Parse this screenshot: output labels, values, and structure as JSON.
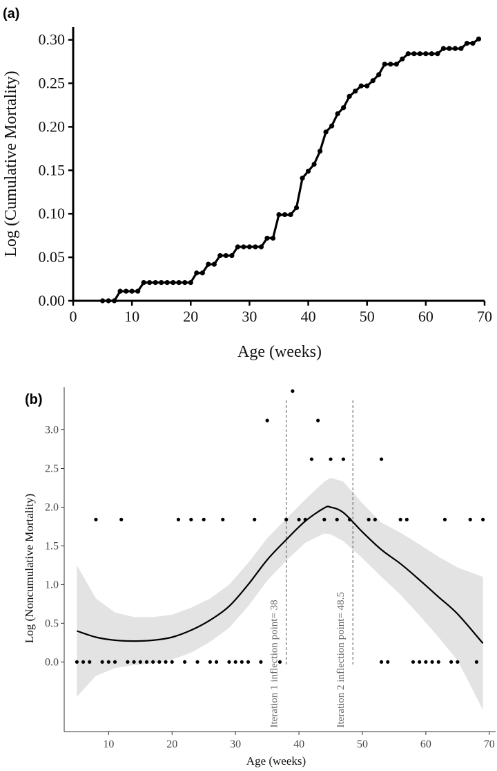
{
  "chart_data": [
    {
      "panel": "(a)",
      "type": "line",
      "xlabel": "Age (weeks)",
      "ylabel": "Log (Cumulative Mortality)",
      "xlim": [
        0,
        70
      ],
      "ylim": [
        0,
        0.31
      ],
      "xticks": [
        "0",
        "10",
        "20",
        "30",
        "40",
        "50",
        "60",
        "70"
      ],
      "yticks": [
        "0.00",
        "0.05",
        "0.10",
        "0.15",
        "0.20",
        "0.25",
        "0.30"
      ],
      "markers": true,
      "series": [
        {
          "x": [
            5,
            6,
            7,
            8,
            9,
            10,
            11,
            12,
            13,
            14,
            15,
            16,
            17,
            18,
            19,
            20,
            21,
            22,
            23,
            24,
            25,
            26,
            27,
            28,
            29,
            30,
            31,
            32,
            33,
            34,
            35,
            36,
            37,
            38,
            39,
            40,
            41,
            42,
            43,
            44,
            45,
            46,
            47,
            48,
            49,
            50,
            51,
            52,
            53,
            54,
            55,
            56,
            57,
            58,
            59,
            60,
            61,
            62,
            63,
            64,
            65,
            66,
            67,
            68,
            69
          ],
          "y": [
            0,
            0,
            0,
            0.011,
            0.011,
            0.011,
            0.011,
            0.021,
            0.021,
            0.021,
            0.021,
            0.021,
            0.021,
            0.021,
            0.021,
            0.021,
            0.032,
            0.032,
            0.042,
            0.042,
            0.052,
            0.052,
            0.052,
            0.062,
            0.062,
            0.062,
            0.062,
            0.062,
            0.072,
            0.072,
            0.099,
            0.099,
            0.099,
            0.107,
            0.141,
            0.149,
            0.157,
            0.172,
            0.194,
            0.201,
            0.215,
            0.222,
            0.235,
            0.241,
            0.247,
            0.247,
            0.253,
            0.26,
            0.272,
            0.272,
            0.272,
            0.278,
            0.284,
            0.284,
            0.284,
            0.284,
            0.284,
            0.284,
            0.29,
            0.29,
            0.29,
            0.29,
            0.296,
            0.296,
            0.301
          ]
        }
      ]
    },
    {
      "panel": "(b)",
      "type": "scatter",
      "xlabel": "Age (weeks)",
      "ylabel": "Log (Noncumulative Mortality)",
      "xlim": [
        3,
        71
      ],
      "ylim": [
        -0.9,
        3.55
      ],
      "xticks": [
        "10",
        "20",
        "30",
        "40",
        "50",
        "60",
        "70"
      ],
      "yticks": [
        "0.0",
        "0.5",
        "1.0",
        "1.5",
        "2.0",
        "2.5",
        "3.0"
      ],
      "points": {
        "x": [
          5,
          6,
          7,
          9,
          10,
          11,
          13,
          14,
          15,
          16,
          17,
          18,
          19,
          20,
          22,
          24,
          26,
          27,
          29,
          30,
          31,
          32,
          34,
          37,
          53,
          54,
          58,
          59,
          60,
          61,
          62,
          64,
          65,
          68,
          8,
          12,
          21,
          23,
          25,
          28,
          33,
          38,
          40,
          41,
          44,
          46,
          48,
          51,
          52,
          56,
          57,
          63,
          67,
          69,
          42,
          45,
          47,
          53,
          35,
          43,
          39
        ],
        "y": [
          0,
          0,
          0,
          0,
          0,
          0,
          0,
          0,
          0,
          0,
          0,
          0,
          0,
          0,
          0,
          0,
          0,
          0,
          0,
          0,
          0,
          0,
          0,
          0,
          0,
          0,
          0,
          0,
          0,
          0,
          0,
          0,
          0,
          0,
          1.84,
          1.84,
          1.84,
          1.84,
          1.84,
          1.84,
          1.84,
          1.84,
          1.84,
          1.84,
          1.84,
          1.84,
          1.84,
          1.84,
          1.84,
          1.84,
          1.84,
          1.84,
          1.84,
          1.84,
          2.62,
          2.62,
          2.62,
          2.62,
          3.12,
          3.12,
          3.5
        ]
      },
      "smooth": {
        "x": [
          5,
          8,
          11,
          14,
          17,
          20,
          23,
          26,
          29,
          32,
          35,
          38,
          41,
          44,
          45,
          47,
          50,
          53,
          56,
          59,
          62,
          65,
          69
        ],
        "y": [
          0.4,
          0.32,
          0.28,
          0.27,
          0.28,
          0.32,
          0.41,
          0.54,
          0.72,
          1.0,
          1.32,
          1.58,
          1.82,
          1.99,
          2.0,
          1.93,
          1.68,
          1.45,
          1.27,
          1.06,
          0.84,
          0.62,
          0.24
        ],
        "lower": [
          -0.45,
          -0.18,
          -0.08,
          -0.04,
          -0.02,
          0.03,
          0.12,
          0.26,
          0.44,
          0.72,
          1.05,
          1.31,
          1.54,
          1.66,
          1.65,
          1.56,
          1.34,
          1.1,
          0.87,
          0.6,
          0.32,
          0.02,
          -0.62
        ],
        "upper": [
          1.25,
          0.82,
          0.64,
          0.58,
          0.58,
          0.61,
          0.7,
          0.82,
          1.0,
          1.28,
          1.6,
          1.85,
          2.1,
          2.33,
          2.38,
          2.33,
          2.05,
          1.8,
          1.67,
          1.52,
          1.36,
          1.22,
          1.1
        ]
      },
      "vlines": [
        {
          "x": 38,
          "label": "Iteration 1 inflection point= 38"
        },
        {
          "x": 48.5,
          "label": "Iteration 2 inflection point= 48.5"
        }
      ]
    }
  ]
}
